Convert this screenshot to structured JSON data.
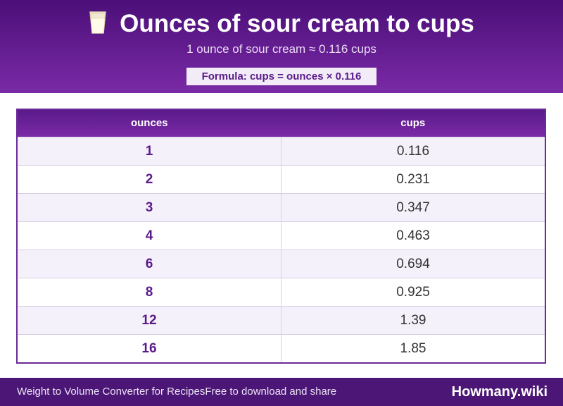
{
  "header": {
    "title": "Ounces of sour cream to cups",
    "icon": "milk-glass-icon",
    "subtitle": "1 ounce of sour cream ≈ 0.116 cups",
    "formula": "Formula: cups = ounces × 0.116"
  },
  "table": {
    "columns": [
      "ounces",
      "cups"
    ],
    "rows": [
      [
        "1",
        "0.116"
      ],
      [
        "2",
        "0.231"
      ],
      [
        "3",
        "0.347"
      ],
      [
        "4",
        "0.463"
      ],
      [
        "6",
        "0.694"
      ],
      [
        "8",
        "0.925"
      ],
      [
        "12",
        "1.39"
      ],
      [
        "16",
        "1.85"
      ]
    ]
  },
  "footer": {
    "left_text": "Weight to Volume Converter for RecipesFree to download and share",
    "brand": "Howmany.wiki"
  },
  "colors": {
    "header_dark": "#4b0f78",
    "header_light": "#7a2aa6",
    "accent": "#5a1a8a",
    "row_alt": "#f5f1fa"
  }
}
